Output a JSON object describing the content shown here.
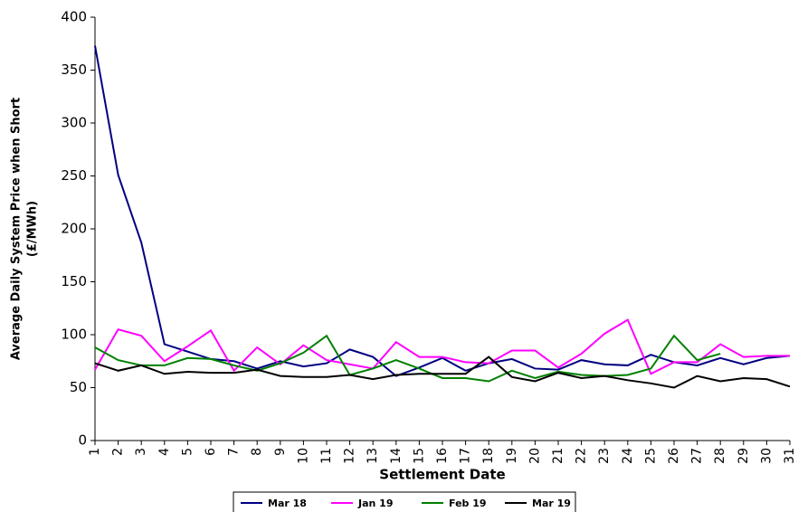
{
  "chart_data": {
    "type": "line",
    "y_label": [
      "Average Daily System Price when Short",
      "(£/MWh)"
    ],
    "x_label": "Settlement Date",
    "categories": [
      "1",
      "2",
      "3",
      "4",
      "5",
      "6",
      "7",
      "8",
      "9",
      "10",
      "11",
      "12",
      "13",
      "14",
      "15",
      "16",
      "17",
      "18",
      "19",
      "20",
      "21",
      "22",
      "23",
      "24",
      "25",
      "26",
      "27",
      "28",
      "29",
      "30",
      "31"
    ],
    "series": [
      {
        "name": "Mar 18",
        "color": "#000080",
        "values": [
          373,
          251,
          187,
          91,
          84,
          77,
          75,
          68,
          75,
          70,
          73,
          86,
          79,
          61,
          69,
          78,
          66,
          73,
          77,
          68,
          67,
          76,
          72,
          71,
          81,
          74,
          71,
          78,
          72,
          78,
          80
        ]
      },
      {
        "name": "Jan 19",
        "color": "#ff00ff",
        "values": [
          67,
          105,
          99,
          75,
          89,
          104,
          66,
          88,
          72,
          90,
          76,
          72,
          68,
          93,
          79,
          79,
          74,
          73,
          85,
          85,
          69,
          82,
          101,
          114,
          63,
          74,
          74,
          91,
          79,
          80,
          80
        ]
      },
      {
        "name": "Feb 19",
        "color": "#008000",
        "values": [
          88,
          76,
          71,
          71,
          78,
          77,
          71,
          66,
          73,
          83,
          99,
          62,
          68,
          76,
          68,
          59,
          59,
          56,
          66,
          59,
          65,
          62,
          61,
          62,
          68,
          99,
          76,
          82,
          null,
          null,
          null
        ]
      },
      {
        "name": "Mar 19",
        "color": "#000000",
        "values": [
          73,
          66,
          71,
          63,
          65,
          64,
          64,
          67,
          61,
          60,
          60,
          62,
          58,
          62,
          63,
          63,
          63,
          79,
          60,
          56,
          64,
          59,
          61,
          57,
          54,
          50,
          61,
          56,
          59,
          58,
          51
        ]
      }
    ],
    "ylim": [
      0,
      400
    ],
    "yticks": [
      0,
      50,
      100,
      150,
      200,
      250,
      300,
      350,
      400
    ]
  }
}
